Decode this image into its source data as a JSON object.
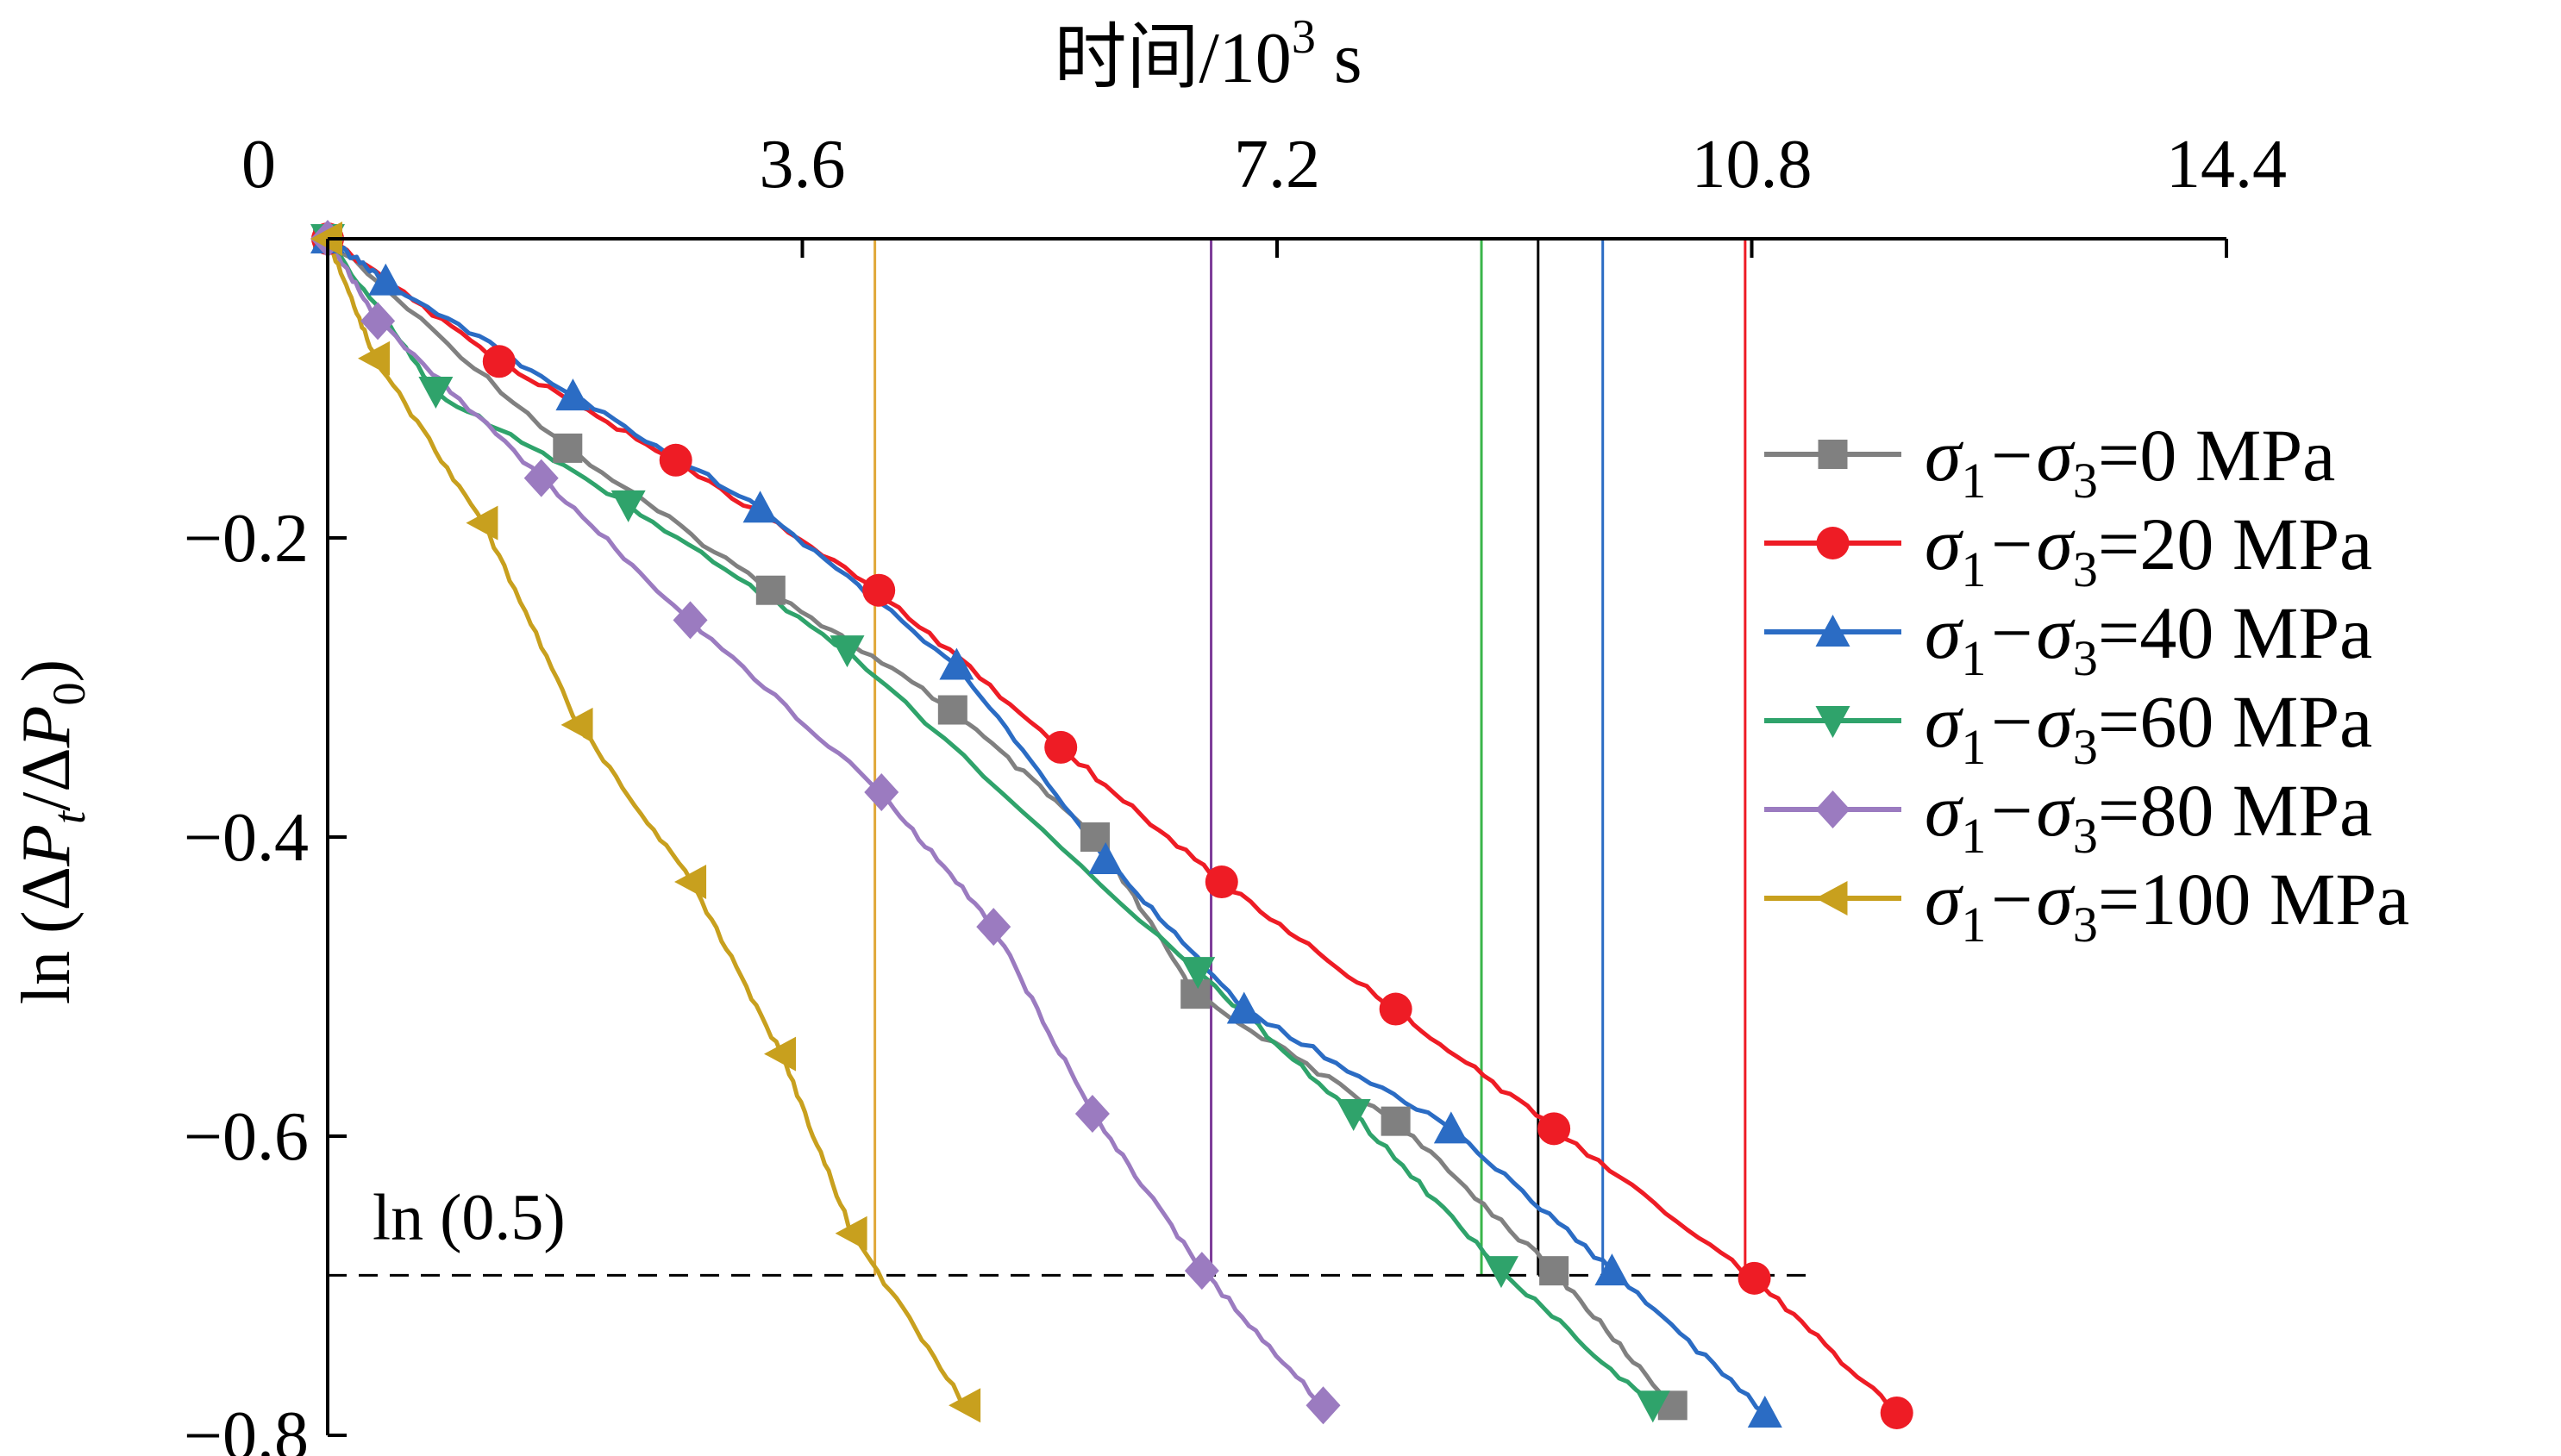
{
  "chart_data": {
    "type": "line",
    "title": "",
    "xlabel": "时间/10",
    "xlabel_sup": "3",
    "xlabel_unit": " s",
    "ylabel_parts": [
      "ln (Δ",
      "P",
      "t",
      "/Δ",
      "P",
      "0",
      ")"
    ],
    "xlim": [
      0,
      14.4
    ],
    "ylim": [
      -0.8,
      0
    ],
    "xticks": [
      0,
      3.6,
      7.2,
      10.8,
      14.4
    ],
    "xtick_labels": [
      "0",
      "3.6",
      "7.2",
      "10.8",
      "14.4"
    ],
    "yticks": [
      -0.2,
      -0.4,
      -0.6,
      -0.8
    ],
    "ytick_labels": [
      "−0.2",
      "−0.4",
      "−0.6",
      "−0.8"
    ],
    "x_axis_position": "top",
    "legend_position": "right",
    "grid": false,
    "reference_line": {
      "y": -0.693,
      "label": "ln (0.5)",
      "style": "dashed"
    },
    "series": [
      {
        "name": "σ1−σ3=0 MPa",
        "legend_parts": [
          "σ",
          "1",
          "−σ",
          "3",
          "=0 MPa"
        ],
        "color": "#808080",
        "marker": "square",
        "points": [
          [
            0,
            0
          ],
          [
            1.82,
            -0.14
          ],
          [
            3.36,
            -0.235
          ],
          [
            4.74,
            -0.315
          ],
          [
            5.82,
            -0.4
          ],
          [
            6.58,
            -0.505
          ],
          [
            8.1,
            -0.59
          ],
          [
            9.3,
            -0.69
          ],
          [
            10.2,
            -0.78
          ]
        ],
        "critical_time": 9.18,
        "critical_color": "#000000"
      },
      {
        "name": "σ1−σ3=20 MPa",
        "legend_parts": [
          "σ",
          "1",
          "−σ",
          "3",
          "=20 MPa"
        ],
        "color": "#ee1c25",
        "marker": "circle",
        "points": [
          [
            0,
            0
          ],
          [
            1.3,
            -0.082
          ],
          [
            2.64,
            -0.148
          ],
          [
            4.18,
            -0.235
          ],
          [
            5.56,
            -0.34
          ],
          [
            6.78,
            -0.43
          ],
          [
            8.1,
            -0.515
          ],
          [
            9.3,
            -0.595
          ],
          [
            10.82,
            -0.695
          ],
          [
            11.9,
            -0.785
          ]
        ],
        "critical_time": 10.75,
        "critical_color": "#ee1c25"
      },
      {
        "name": "σ1−σ3=40 MPa",
        "legend_parts": [
          "σ",
          "1",
          "−σ",
          "3",
          "=40 MPa"
        ],
        "color": "#2b6cc4",
        "marker": "triangle-up",
        "points": [
          [
            0,
            0
          ],
          [
            0.44,
            -0.028
          ],
          [
            1.86,
            -0.105
          ],
          [
            3.28,
            -0.18
          ],
          [
            4.77,
            -0.285
          ],
          [
            5.9,
            -0.415
          ],
          [
            6.95,
            -0.515
          ],
          [
            8.52,
            -0.595
          ],
          [
            9.74,
            -0.69
          ],
          [
            10.9,
            -0.785
          ]
        ],
        "critical_time": 9.67,
        "critical_color": "#2b6cc4"
      },
      {
        "name": "σ1−σ3=60 MPa",
        "legend_parts": [
          "σ",
          "1",
          "−σ",
          "3",
          "=60 MPa"
        ],
        "color": "#2fa36b",
        "marker": "triangle-down",
        "points": [
          [
            0,
            0
          ],
          [
            0.82,
            -0.102
          ],
          [
            2.28,
            -0.178
          ],
          [
            3.94,
            -0.275
          ],
          [
            6.6,
            -0.49
          ],
          [
            7.78,
            -0.585
          ],
          [
            8.9,
            -0.69
          ],
          [
            10.05,
            -0.78
          ]
        ],
        "critical_time": 8.75,
        "critical_color": "#3ab54a"
      },
      {
        "name": "σ1−σ3=80 MPa",
        "legend_parts": [
          "σ",
          "1",
          "−σ",
          "3",
          "=80 MPa"
        ],
        "color": "#9b7bc0",
        "marker": "diamond",
        "points": [
          [
            0,
            0
          ],
          [
            0.38,
            -0.055
          ],
          [
            1.62,
            -0.16
          ],
          [
            2.75,
            -0.255
          ],
          [
            4.2,
            -0.37
          ],
          [
            5.05,
            -0.46
          ],
          [
            5.8,
            -0.585
          ],
          [
            6.63,
            -0.69
          ],
          [
            7.55,
            -0.78
          ]
        ],
        "critical_time": 6.7,
        "critical_color": "#7d3c98"
      },
      {
        "name": "σ1−σ3=100 MPa",
        "legend_parts": [
          "σ",
          "1",
          "−σ",
          "3",
          "=100 MPa"
        ],
        "color": "#c8a01e",
        "marker": "triangle-left",
        "points": [
          [
            0,
            0
          ],
          [
            0.36,
            -0.08
          ],
          [
            1.18,
            -0.19
          ],
          [
            1.9,
            -0.325
          ],
          [
            2.76,
            -0.43
          ],
          [
            3.44,
            -0.545
          ],
          [
            3.98,
            -0.665
          ],
          [
            4.84,
            -0.78
          ]
        ],
        "critical_time": 4.15,
        "critical_color": "#e0a83a"
      }
    ]
  }
}
